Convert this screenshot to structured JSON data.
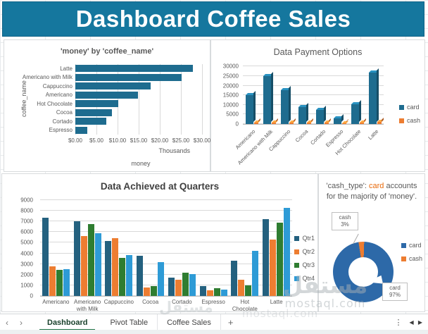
{
  "header": {
    "title": "Dashboard Coffee Sales"
  },
  "colors": {
    "header_bg": "#15779e",
    "bar_teal": "#1e6c8f",
    "orange": "#ed7d31",
    "green": "#2f7d31",
    "light_blue": "#2e9bd6",
    "steel_blue": "#24617f",
    "donut_blue": "#2d69a8",
    "active_tab_green": "#217346"
  },
  "chart_data": [
    {
      "id": "money_by_coffee",
      "type": "bar",
      "orientation": "horizontal",
      "title": "'money' by 'coffee_name'",
      "categories": [
        "Latte",
        "Americano with Milk",
        "Cappuccino",
        "Americano",
        "Hot Chocolate",
        "Cocoa",
        "Cortado",
        "Espresso"
      ],
      "values": [
        28.2,
        25.4,
        18.1,
        15.0,
        10.2,
        8.7,
        7.4,
        2.8
      ],
      "bar_color": "#1e6c8f",
      "xlabel": "money",
      "ylabel": "coffee_name",
      "x_units": "Thousands",
      "x_ticks": [
        "$0.00",
        "$5.00",
        "$10.00",
        "$15.00",
        "$20.00",
        "$25.00",
        "$30.00"
      ],
      "x_tick_values": [
        0,
        5,
        10,
        15,
        20,
        25,
        30
      ],
      "xlim": [
        0,
        31
      ],
      "grid": true
    },
    {
      "id": "payment_options",
      "type": "bar",
      "style": "3d-column",
      "title": "Data Payment Options",
      "categories": [
        "Americano",
        "Americano with Milk",
        "Cappuccino",
        "Cocoa",
        "Cortado",
        "Espresso",
        "Hot Chocolate",
        "Latte"
      ],
      "series": [
        {
          "name": "card",
          "color": "#1e6c8f",
          "values": [
            15000,
            25000,
            17800,
            8800,
            7500,
            2900,
            10400,
            27000
          ]
        },
        {
          "name": "cash",
          "color": "#ed7d31",
          "values": [
            600,
            800,
            900,
            650,
            600,
            500,
            650,
            1200
          ]
        }
      ],
      "y_ticks": [
        0,
        5000,
        10000,
        15000,
        20000,
        25000,
        30000
      ],
      "ylim": [
        0,
        32000
      ],
      "legend_position": "right",
      "grid": true
    },
    {
      "id": "quarters",
      "type": "bar",
      "style": "grouped-column",
      "title": "Data Achieved at Quarters",
      "categories": [
        "Americano",
        "Americano with Milk",
        "Cappuccino",
        "Cocoa",
        "Cortado",
        "Espresso",
        "Hot Chocolate",
        "Latte"
      ],
      "series": [
        {
          "name": "Qtr1",
          "color": "#24617f",
          "values": [
            7350,
            7000,
            5150,
            3800,
            1750,
            950,
            3300,
            7200
          ]
        },
        {
          "name": "Qtr2",
          "color": "#ed7d31",
          "values": [
            2750,
            5600,
            5450,
            800,
            1550,
            550,
            1550,
            5300
          ]
        },
        {
          "name": "Qtr3",
          "color": "#2f7d31",
          "values": [
            2450,
            6750,
            3550,
            950,
            2200,
            750,
            1000,
            6900
          ]
        },
        {
          "name": "Qtr4",
          "color": "#2e9bd6",
          "values": [
            2500,
            5900,
            3850,
            3150,
            2050,
            600,
            4250,
            8300
          ]
        }
      ],
      "y_ticks": [
        0,
        1000,
        2000,
        3000,
        4000,
        5000,
        6000,
        7000,
        8000,
        9000
      ],
      "ylim": [
        0,
        9000
      ],
      "legend_position": "right",
      "grid": true
    },
    {
      "id": "cash_type_donut",
      "type": "pie",
      "subtype": "donut",
      "title_prefix": "'cash_type': ",
      "title_highlight": "card",
      "title_suffix": " accounts for the majority of 'money'.",
      "slices": [
        {
          "name": "card",
          "pct": 97,
          "color": "#2d69a8"
        },
        {
          "name": "cash",
          "pct": 3,
          "color": "#ed7d31"
        }
      ],
      "callouts": [
        {
          "name": "cash",
          "pct_label": "3%"
        },
        {
          "name": "card",
          "pct_label": "97%"
        }
      ],
      "legend_position": "right"
    }
  ],
  "tabs": {
    "nav_prev": "‹",
    "nav_next": "›",
    "items": [
      {
        "label": "Dashboard",
        "active": true
      },
      {
        "label": "Pivot Table",
        "active": false
      },
      {
        "label": "Coffee Sales",
        "active": false
      }
    ],
    "add_label": "+",
    "more_label": "⋮",
    "scroll_icons": "◀ ▶"
  },
  "watermark": {
    "arabic": "مستقل",
    "domain": "mostaql.com"
  }
}
